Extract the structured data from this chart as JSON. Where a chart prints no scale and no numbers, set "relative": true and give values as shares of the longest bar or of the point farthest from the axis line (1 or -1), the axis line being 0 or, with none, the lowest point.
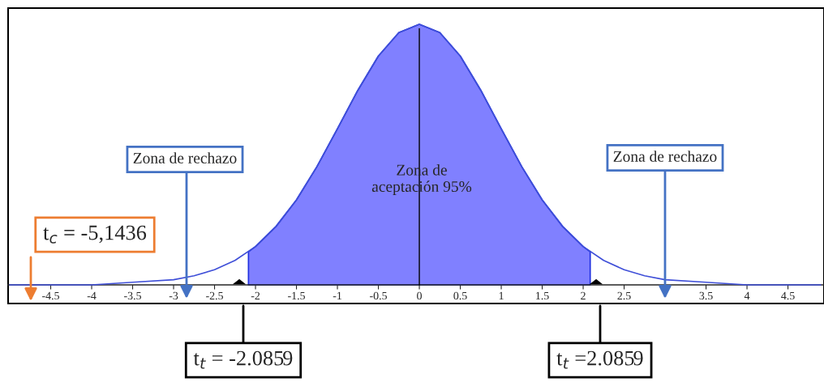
{
  "chart_data": {
    "type": "line",
    "relative": true,
    "tick_labels": "x",
    "grid": false,
    "xlim": [
      -5.02,
      4.94
    ],
    "xticks": [
      -4.5,
      -4,
      -3.5,
      -3,
      -2.5,
      -2,
      -1.5,
      -1,
      -0.5,
      0,
      0.5,
      1,
      1.5,
      2,
      2.5,
      {
        "value": 3,
        "label": null
      },
      3.5,
      4,
      4.5
    ],
    "series": [
      {
        "type": "line",
        "color": "#3f4fd8",
        "x": [
          -5,
          -4.5,
          -4,
          -3.5,
          -3,
          -2.75,
          -2.5,
          -2.25,
          -2,
          -1.75,
          -1.5,
          -1.25,
          -1,
          -0.75,
          -0.5,
          -0.25,
          0,
          0.25,
          0.5,
          0.75,
          1,
          1.25,
          1.5,
          1.75,
          2,
          2.25,
          2.5,
          2.75,
          3,
          3.5,
          4,
          4.5,
          4.9
        ],
        "values": [
          0.0,
          0.0,
          0.0,
          0.01,
          0.02,
          0.035,
          0.058,
          0.094,
          0.147,
          0.224,
          0.326,
          0.454,
          0.599,
          0.747,
          0.878,
          0.968,
          1,
          0.968,
          0.878,
          0.747,
          0.599,
          0.454,
          0.326,
          0.224,
          0.147,
          0.094,
          0.058,
          0.035,
          0.02,
          0.01,
          0.0,
          0.0,
          0.0
        ]
      },
      {
        "type": "area",
        "color": "#8080ff",
        "x": [
          -2.0859,
          -2,
          -1.75,
          -1.5,
          -1.25,
          -1,
          -0.75,
          -0.5,
          -0.25,
          0,
          0.25,
          0.5,
          0.75,
          1,
          1.25,
          1.5,
          1.75,
          2,
          2.0859
        ],
        "values": [
          0.127,
          0.147,
          0.224,
          0.326,
          0.454,
          0.599,
          0.747,
          0.878,
          0.968,
          1,
          0.968,
          0.878,
          0.747,
          0.599,
          0.454,
          0.326,
          0.224,
          0.147,
          0.127
        ]
      }
    ],
    "ref_lines": [
      {
        "axis": "x",
        "value": 0,
        "color": "#000000"
      }
    ],
    "annotations": [
      "Zona de rechazo",
      "Zona de rechazo",
      "Zona de\naceptación 95%",
      "t$_{c}$ = -5,1436",
      "t$_{t}$ = -2.0859",
      "t$_{t}$ =2.0859"
    ]
  }
}
